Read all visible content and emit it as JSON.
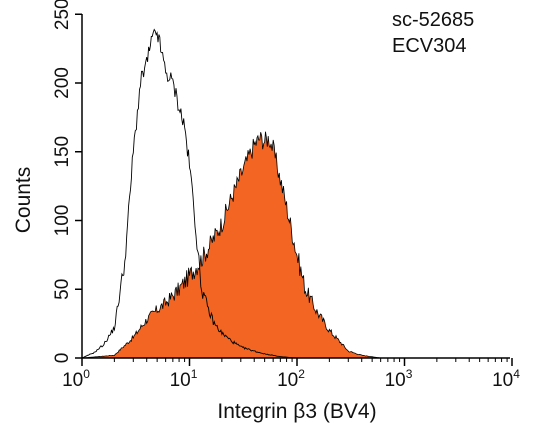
{
  "chart_data": {
    "type": "area",
    "xscale": "log",
    "xlim": [
      1,
      10000
    ],
    "ylim": [
      0,
      270
    ],
    "x_ticks": [
      1,
      10,
      100,
      1000,
      10000
    ],
    "x_tick_labels": [
      {
        "base": "10",
        "exp": "0"
      },
      {
        "base": "10",
        "exp": "1"
      },
      {
        "base": "10",
        "exp": "2"
      },
      {
        "base": "10",
        "exp": "3"
      },
      {
        "base": "10",
        "exp": "4"
      }
    ],
    "y_ticks": [
      0,
      50,
      100,
      150,
      200,
      250
    ],
    "y_tick_labels": [
      "0",
      "50",
      "100",
      "150",
      "200",
      "250"
    ],
    "xlabel": "Integrin β3 (BV4)",
    "ylabel": "Counts",
    "annotations": [
      "sc-52685",
      "ECV304"
    ],
    "grid": false,
    "series": [
      {
        "style": "outline",
        "color": "#000000",
        "x": [
          1,
          1.3,
          1.6,
          2,
          2.5,
          3,
          3.5,
          4,
          4.5,
          5,
          5.5,
          6,
          7,
          8,
          9,
          10,
          11,
          12,
          13,
          15,
          17,
          20,
          25,
          30,
          40,
          50,
          70,
          100
        ],
        "y": [
          0,
          4,
          10,
          22,
          70,
          150,
          200,
          215,
          232,
          237,
          222,
          208,
          200,
          183,
          168,
          140,
          110,
          75,
          50,
          35,
          25,
          18,
          12,
          8,
          5,
          3,
          1,
          0
        ]
      },
      {
        "style": "filled",
        "color": "#F26522",
        "x": [
          1,
          2,
          3,
          4,
          5,
          6,
          8,
          10,
          12,
          15,
          20,
          25,
          30,
          35,
          40,
          45,
          50,
          55,
          60,
          70,
          80,
          100,
          120,
          150,
          200,
          250,
          300,
          400,
          600
        ],
        "y": [
          0,
          2,
          15,
          28,
          35,
          40,
          50,
          60,
          68,
          80,
          98,
          118,
          133,
          145,
          155,
          160,
          158,
          160,
          152,
          130,
          110,
          75,
          50,
          35,
          20,
          12,
          5,
          2,
          0
        ]
      }
    ]
  }
}
